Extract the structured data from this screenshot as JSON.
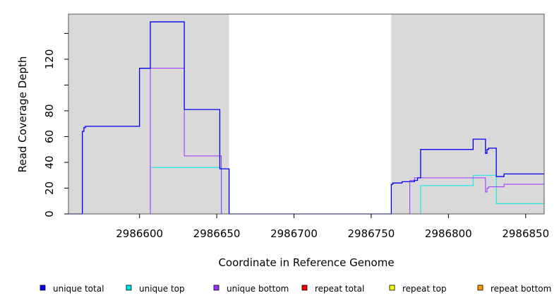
{
  "chart_data": {
    "type": "line",
    "xlabel": "Coordinate in Reference Genome",
    "ylabel": "Read Coverage Depth",
    "xlim": [
      2986554,
      2986862
    ],
    "ylim": [
      0,
      155
    ],
    "x_ticks": [
      2986600,
      2986650,
      2986700,
      2986750,
      2986800,
      2986850
    ],
    "x_tick_labels": [
      "2986600",
      "2986650",
      "2986700",
      "2986750",
      "2986800",
      "2986850"
    ],
    "y_ticks": [
      0,
      20,
      40,
      60,
      80,
      100,
      120,
      140
    ],
    "y_tick_labels": [
      "0",
      "20",
      "40",
      "60",
      "80",
      "",
      "120",
      ""
    ],
    "shaded_regions": [
      [
        2986554,
        2986658
      ],
      [
        2986763,
        2986862
      ]
    ],
    "shade_color": "#d9d9d9",
    "series": [
      {
        "name": "unique top",
        "color": "#00e5e5",
        "points": [
          [
            2986554,
            0
          ],
          [
            2986607,
            0
          ],
          [
            2986607,
            36
          ],
          [
            2986653,
            36
          ],
          [
            2986653,
            0
          ],
          [
            2986782,
            0
          ],
          [
            2986782,
            22
          ],
          [
            2986816,
            22
          ],
          [
            2986816,
            30
          ],
          [
            2986831,
            30
          ],
          [
            2986831,
            8
          ],
          [
            2986862,
            8
          ]
        ]
      },
      {
        "name": "unique bottom",
        "color": "#9b30ff",
        "points": [
          [
            2986554,
            0
          ],
          [
            2986607,
            0
          ],
          [
            2986607,
            113
          ],
          [
            2986629,
            113
          ],
          [
            2986629,
            45
          ],
          [
            2986653,
            45
          ],
          [
            2986653,
            0
          ],
          [
            2986775,
            0
          ],
          [
            2986775,
            26
          ],
          [
            2986778,
            26
          ],
          [
            2986778,
            28
          ],
          [
            2986824,
            28
          ],
          [
            2986824,
            17
          ],
          [
            2986825,
            17
          ],
          [
            2986825,
            20
          ],
          [
            2986826,
            20
          ],
          [
            2986826,
            21
          ],
          [
            2986836,
            21
          ],
          [
            2986836,
            23
          ],
          [
            2986862,
            23
          ]
        ]
      },
      {
        "name": "unique total",
        "color": "#0000ee",
        "points": [
          [
            2986554,
            0
          ],
          [
            2986563,
            0
          ],
          [
            2986563,
            64
          ],
          [
            2986564,
            64
          ],
          [
            2986564,
            67
          ],
          [
            2986565,
            67
          ],
          [
            2986565,
            68
          ],
          [
            2986600,
            68
          ],
          [
            2986600,
            113
          ],
          [
            2986607,
            113
          ],
          [
            2986607,
            149
          ],
          [
            2986629,
            149
          ],
          [
            2986629,
            81
          ],
          [
            2986652,
            81
          ],
          [
            2986652,
            35
          ],
          [
            2986658,
            35
          ],
          [
            2986658,
            0
          ],
          [
            2986763,
            0
          ],
          [
            2986763,
            23
          ],
          [
            2986764,
            23
          ],
          [
            2986764,
            24
          ],
          [
            2986770,
            24
          ],
          [
            2986770,
            25
          ],
          [
            2986778,
            25
          ],
          [
            2986778,
            26
          ],
          [
            2986780,
            26
          ],
          [
            2986780,
            28
          ],
          [
            2986782,
            28
          ],
          [
            2986782,
            50
          ],
          [
            2986816,
            50
          ],
          [
            2986816,
            58
          ],
          [
            2986824,
            58
          ],
          [
            2986824,
            47
          ],
          [
            2986825,
            47
          ],
          [
            2986825,
            50
          ],
          [
            2986826,
            50
          ],
          [
            2986826,
            51
          ],
          [
            2986831,
            51
          ],
          [
            2986831,
            29
          ],
          [
            2986836,
            29
          ],
          [
            2986836,
            31
          ],
          [
            2986862,
            31
          ]
        ]
      },
      {
        "name": "repeat total",
        "color": "#ff0000",
        "points": [
          [
            2986554,
            0
          ],
          [
            2986862,
            0
          ]
        ]
      },
      {
        "name": "repeat top",
        "color": "#ffff00",
        "points": [
          [
            2986554,
            0
          ],
          [
            2986862,
            0
          ]
        ]
      },
      {
        "name": "repeat bottom",
        "color": "#ff9900",
        "points": [
          [
            2986554,
            0
          ],
          [
            2986862,
            0
          ]
        ]
      }
    ],
    "legend": {
      "placement": "bottom",
      "entries": [
        {
          "label": "unique total",
          "color": "#0000ee"
        },
        {
          "label": "unique top",
          "color": "#00e5e5"
        },
        {
          "label": "unique bottom",
          "color": "#9b30ff"
        },
        {
          "label": "repeat total",
          "color": "#ff0000"
        },
        {
          "label": "repeat top",
          "color": "#ffff00"
        },
        {
          "label": "repeat bottom",
          "color": "#ff9900"
        }
      ]
    }
  }
}
